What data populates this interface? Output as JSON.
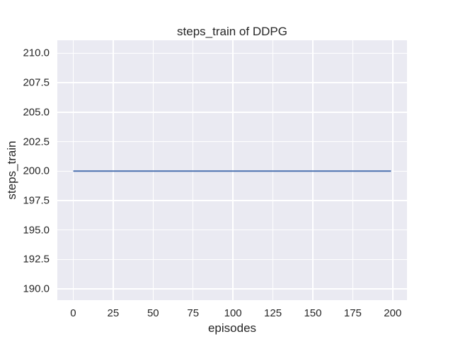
{
  "figure": {
    "background": "#ffffff"
  },
  "chart_data": {
    "type": "line",
    "title": "steps_train of DDPG",
    "xlabel": "episodes",
    "ylabel": "steps_train",
    "xlim": [
      -9.95,
      208.95
    ],
    "ylim": [
      189.05,
      211.1
    ],
    "x_ticks": [
      0,
      25,
      50,
      75,
      100,
      125,
      150,
      175,
      200
    ],
    "x_tick_labels": [
      "0",
      "25",
      "50",
      "75",
      "100",
      "125",
      "150",
      "175",
      "200"
    ],
    "y_ticks": [
      190,
      192.5,
      195,
      197.5,
      200,
      202.5,
      205,
      207.5,
      210
    ],
    "y_tick_labels": [
      "190.0",
      "192.5",
      "195.0",
      "197.5",
      "200.0",
      "202.5",
      "205.0",
      "207.5",
      "210.0"
    ],
    "grid": true,
    "legend": false,
    "plot_background": "#eaeaf2",
    "grid_color": "#ffffff",
    "text_color": "#262626",
    "series": [
      {
        "name": "steps_train",
        "color": "#4c72b0",
        "line_width": 2,
        "x": [
          0,
          199
        ],
        "y": [
          200,
          200
        ]
      }
    ]
  }
}
